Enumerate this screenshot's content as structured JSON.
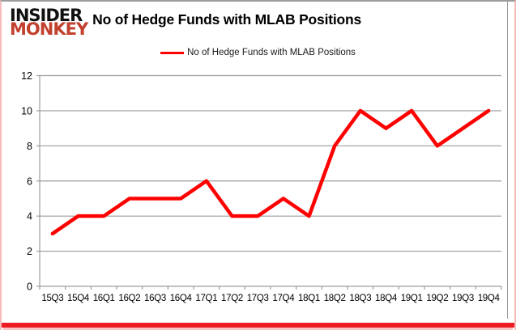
{
  "logo": {
    "line1": "INSIDER",
    "line2": "MONKEY",
    "color": "#c2402e"
  },
  "header": {
    "title": "No of Hedge Funds with MLAB Positions"
  },
  "legend": {
    "label": "No of Hedge Funds with MLAB Positions",
    "color": "#ff0000"
  },
  "frame": {
    "bottom_bar_color": "#ed1b22"
  },
  "chart_data": {
    "type": "line",
    "title": "No of Hedge Funds with MLAB Positions",
    "categories": [
      "15Q3",
      "15Q4",
      "16Q1",
      "16Q2",
      "16Q3",
      "16Q4",
      "17Q1",
      "17Q2",
      "17Q3",
      "17Q4",
      "18Q1",
      "18Q2",
      "18Q3",
      "18Q4",
      "19Q1",
      "19Q2",
      "19Q3",
      "19Q4"
    ],
    "series": [
      {
        "name": "No of Hedge Funds with MLAB Positions",
        "color": "#ff0000",
        "values": [
          3,
          4,
          4,
          5,
          5,
          5,
          6,
          4,
          4,
          5,
          4,
          8,
          10,
          9,
          10,
          8,
          9,
          10
        ]
      }
    ],
    "xlabel": "",
    "ylabel": "",
    "ylim": [
      0,
      12
    ],
    "yticks": [
      0,
      2,
      4,
      6,
      8,
      10,
      12
    ],
    "grid": true,
    "gridline_color": "#9c9c9c",
    "axis_color": "#9c9c9c",
    "legend_position": "top"
  }
}
